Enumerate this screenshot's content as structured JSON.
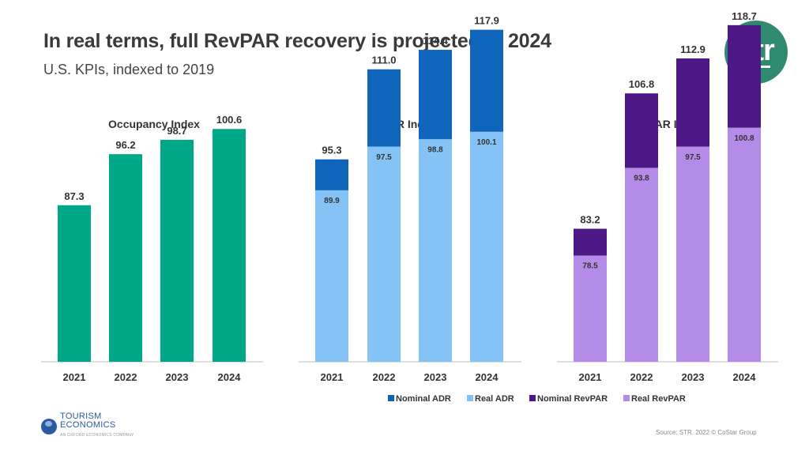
{
  "page": {
    "title": "In real terms, full RevPAR recovery is projected in 2024",
    "subtitle": "U.S. KPIs, indexed to 2019",
    "logo_text": "str",
    "source": "Source: STR. 2022 © CoStar Group",
    "te_logo_line1": "TOURISM",
    "te_logo_line2": "ECONOMICS",
    "te_logo_sub": "AN OXFORD ECONOMICS COMPANY"
  },
  "colors": {
    "occupancy": "#00a88a",
    "nominal_adr": "#0f65b9",
    "real_adr": "#85c2f6",
    "nominal_revpar": "#4d1786",
    "real_revpar": "#b48be6",
    "logo": "#2f8a70"
  },
  "chart_data": [
    {
      "type": "bar",
      "title": "Occupancy Index",
      "categories": [
        "2021",
        "2022",
        "2023",
        "2024"
      ],
      "series": [
        {
          "values": [
            87.3,
            96.2,
            98.7,
            100.6
          ],
          "color": "occupancy"
        }
      ],
      "ylim": [
        60,
        125
      ]
    },
    {
      "type": "bar",
      "title": "ADR Index",
      "categories": [
        "2021",
        "2022",
        "2023",
        "2024"
      ],
      "series": [
        {
          "name": "Nominal ADR",
          "values": [
            95.3,
            111.0,
            114.4,
            117.9
          ],
          "color": "nominal_adr"
        },
        {
          "name": "Real ADR",
          "values": [
            89.9,
            97.5,
            98.8,
            100.1
          ],
          "color": "real_adr"
        }
      ],
      "ylim": [
        60,
        125
      ]
    },
    {
      "type": "bar",
      "title": "RevPAR Index",
      "categories": [
        "2021",
        "2022",
        "2023",
        "2024"
      ],
      "series": [
        {
          "name": "Nominal RevPAR",
          "values": [
            83.2,
            106.8,
            112.9,
            118.7
          ],
          "color": "nominal_revpar"
        },
        {
          "name": "Real RevPAR",
          "values": [
            78.5,
            93.8,
            97.5,
            100.8
          ],
          "color": "real_revpar"
        }
      ],
      "ylim": [
        60,
        125
      ]
    }
  ],
  "legend": [
    {
      "label": "Nominal ADR",
      "color": "nominal_adr"
    },
    {
      "label": "Real ADR",
      "color": "real_adr"
    },
    {
      "label": "Nominal RevPAR",
      "color": "nominal_revpar"
    },
    {
      "label": "Real RevPAR",
      "color": "real_revpar"
    }
  ]
}
